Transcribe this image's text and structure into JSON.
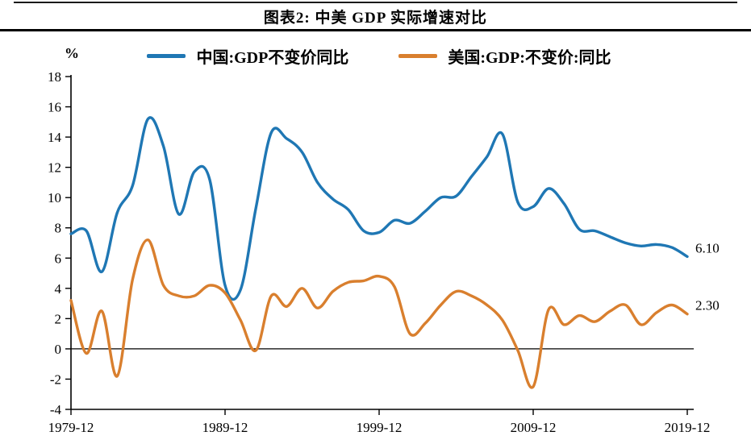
{
  "header": {
    "title": "图表2: 中美 GDP 实际增速对比"
  },
  "legend": [
    {
      "label": "中国:GDP不变价同比",
      "color": "#1f77b4"
    },
    {
      "label": "美国:GDP:不变价:同比",
      "color": "#d97f2e"
    }
  ],
  "chart_data": {
    "type": "line",
    "title": "图表2: 中美 GDP 实际增速对比",
    "y_unit_label": "%",
    "ylim": [
      -4,
      18
    ],
    "xlim": [
      1979,
      2019
    ],
    "yticks": [
      18,
      16,
      14,
      12,
      10,
      8,
      6,
      4,
      2,
      0,
      -2,
      -4
    ],
    "xticks": [
      {
        "x": 1979,
        "label": "1979-12"
      },
      {
        "x": 1989,
        "label": "1989-12"
      },
      {
        "x": 1999,
        "label": "1999-12"
      },
      {
        "x": 2009,
        "label": "2009-12"
      },
      {
        "x": 2019,
        "label": "2019-12"
      }
    ],
    "grid": "zero-line-only",
    "legend_position": "top",
    "x": [
      1979,
      1980,
      1981,
      1982,
      1983,
      1984,
      1985,
      1986,
      1987,
      1988,
      1989,
      1990,
      1991,
      1992,
      1993,
      1994,
      1995,
      1996,
      1997,
      1998,
      1999,
      2000,
      2001,
      2002,
      2003,
      2004,
      2005,
      2006,
      2007,
      2008,
      2009,
      2010,
      2011,
      2012,
      2013,
      2014,
      2015,
      2016,
      2017,
      2018,
      2019
    ],
    "series": [
      {
        "id": "china",
        "name": "中国:GDP不变价同比",
        "color": "#1f77b4",
        "end_label": "6.10",
        "values": [
          7.6,
          7.8,
          5.1,
          9.0,
          10.8,
          15.2,
          13.4,
          8.9,
          11.7,
          11.2,
          4.2,
          3.9,
          9.3,
          14.3,
          13.9,
          13.0,
          11.0,
          9.9,
          9.2,
          7.8,
          7.7,
          8.5,
          8.3,
          9.1,
          10.0,
          10.1,
          11.4,
          12.7,
          14.2,
          9.7,
          9.4,
          10.6,
          9.6,
          7.9,
          7.8,
          7.4,
          7.0,
          6.8,
          6.9,
          6.7,
          6.1
        ]
      },
      {
        "id": "us",
        "name": "美国:GDP:不变价:同比",
        "color": "#d97f2e",
        "end_label": "2.30",
        "values": [
          3.2,
          -0.3,
          2.5,
          -1.8,
          4.6,
          7.2,
          4.2,
          3.5,
          3.5,
          4.2,
          3.7,
          1.9,
          -0.1,
          3.5,
          2.8,
          4.0,
          2.7,
          3.8,
          4.4,
          4.5,
          4.8,
          4.1,
          1.0,
          1.7,
          2.9,
          3.8,
          3.5,
          2.9,
          1.9,
          -0.1,
          -2.5,
          2.6,
          1.6,
          2.2,
          1.8,
          2.5,
          2.9,
          1.6,
          2.4,
          2.9,
          2.3
        ]
      }
    ]
  }
}
